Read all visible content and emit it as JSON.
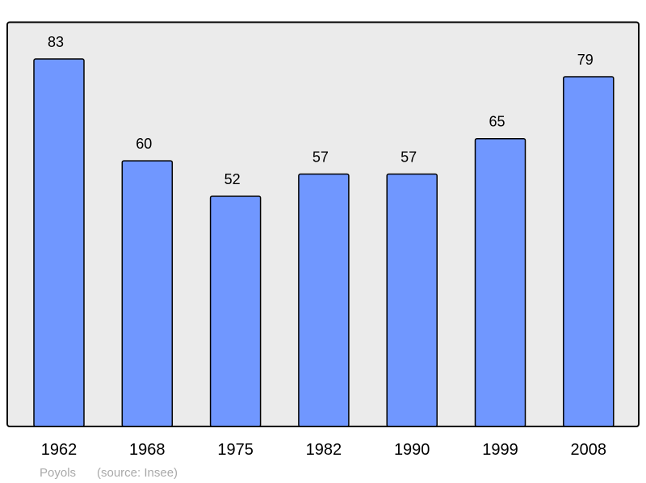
{
  "chart_data": {
    "type": "bar",
    "categories": [
      "1962",
      "1968",
      "1975",
      "1982",
      "1990",
      "1999",
      "2008"
    ],
    "values": [
      83,
      60,
      52,
      57,
      57,
      65,
      79
    ],
    "title": "",
    "xlabel": "",
    "ylabel": "",
    "ylim": [
      0,
      91.4
    ],
    "grid": false,
    "data_labels": true,
    "colors": {
      "bar": "#7097ff",
      "background": "#ebebeb",
      "stroke": "#000000"
    }
  },
  "footer": {
    "place": "Poyols",
    "source": "(source: Insee)"
  }
}
